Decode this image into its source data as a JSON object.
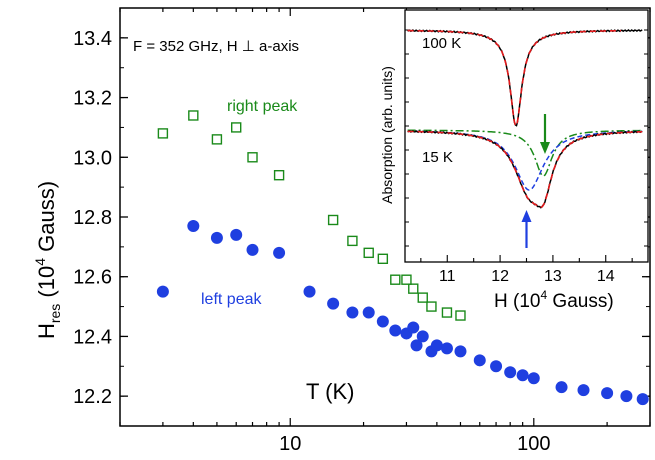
{
  "chart_data": [
    {
      "type": "scatter",
      "x_scale": "log",
      "xlim": [
        2,
        300
      ],
      "ylim": [
        12.1,
        13.5
      ],
      "xlabel": "T (K)",
      "ylabel_main": "H",
      "ylabel_sub": "res",
      "ylabel_unit": " (10",
      "ylabel_exp": "4",
      "ylabel_unit_end": " Gauss)",
      "x_ticks": [
        10,
        100
      ],
      "y_ticks": [
        12.2,
        12.4,
        12.6,
        12.8,
        13.0,
        13.2,
        13.4
      ],
      "y_tick_labels": [
        "12.2",
        "12.4",
        "12.6",
        "12.8",
        "13.0",
        "13.2",
        "13.4"
      ],
      "x_tick_labels": [
        "10",
        "100"
      ],
      "annotation": "F = 352 GHz, H ⊥ a-axis",
      "grid": false,
      "series": [
        {
          "name": "right peak",
          "marker": "open-square",
          "color": "#1a8a1a",
          "x": [
            3,
            4,
            5,
            6,
            7,
            9,
            15,
            18,
            21,
            24,
            27,
            30,
            32,
            35,
            38,
            44,
            50
          ],
          "y": [
            13.08,
            13.14,
            13.06,
            13.1,
            13.0,
            12.94,
            12.79,
            12.72,
            12.68,
            12.66,
            12.59,
            12.59,
            12.56,
            12.53,
            12.5,
            12.48,
            12.47
          ]
        },
        {
          "name": "left peak",
          "marker": "filled-circle",
          "color": "#1f3fe0",
          "x": [
            3,
            4,
            5,
            6,
            7,
            9,
            12,
            15,
            18,
            21,
            24,
            27,
            30,
            32,
            33,
            35,
            38,
            40,
            44,
            50,
            60,
            70,
            80,
            90,
            100,
            130,
            160,
            200,
            240,
            280
          ],
          "y": [
            12.55,
            12.77,
            12.73,
            12.74,
            12.69,
            12.68,
            12.55,
            12.51,
            12.48,
            12.48,
            12.45,
            12.42,
            12.41,
            12.43,
            12.37,
            12.4,
            12.35,
            12.37,
            12.36,
            12.35,
            12.32,
            12.3,
            12.28,
            12.27,
            12.26,
            12.23,
            12.22,
            12.21,
            12.2,
            12.19
          ]
        }
      ]
    },
    {
      "type": "line",
      "inset": true,
      "xlim": [
        10.2,
        14.8
      ],
      "x_ticks": [
        11,
        12,
        13,
        14
      ],
      "x_tick_labels": [
        "11",
        "12",
        "13",
        "14"
      ],
      "xlabel_main": "H (10",
      "xlabel_exp": "4",
      "xlabel_end": " Gauss)",
      "ylabel": "Absorption (arb. units)",
      "labels": [
        "100 K",
        "15 K"
      ],
      "colors": {
        "data": "#000000",
        "fit": "#e41a1c",
        "left_component": "#1f3fe0",
        "right_component": "#1a8a1a"
      },
      "arrows": [
        {
          "x": 12.85,
          "color": "#1a8a1a",
          "direction": "down"
        },
        {
          "x": 12.5,
          "color": "#1f3fe0",
          "direction": "up"
        }
      ]
    }
  ]
}
